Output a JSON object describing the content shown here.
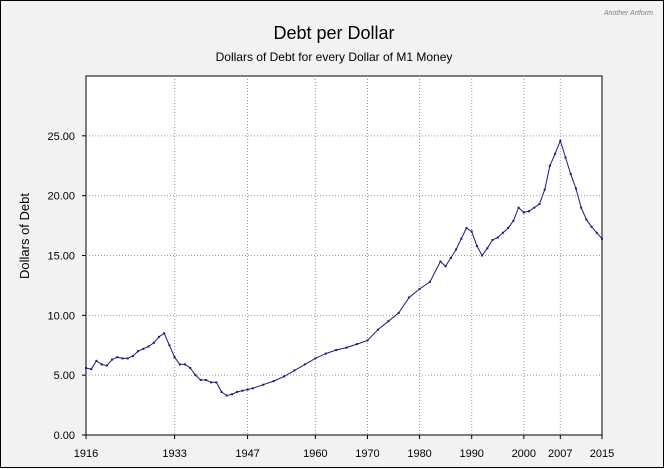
{
  "chart_data": {
    "type": "line",
    "title": "Debt per Dollar",
    "subtitle": "Dollars of Debt for every Dollar of M1 Money",
    "xlabel": "",
    "ylabel": "Dollars of Debt",
    "credit": "Another Artform",
    "xlim": [
      1916,
      2015
    ],
    "ylim": [
      0,
      30
    ],
    "grid": true,
    "line_color": "#1a1a7a",
    "x_ticks": [
      1916,
      1933,
      1947,
      1960,
      1970,
      1980,
      1990,
      2000,
      2007,
      2015
    ],
    "y_ticks": [
      0,
      5,
      10,
      15,
      20,
      25
    ],
    "y_tick_labels": [
      "0.00",
      "5.00",
      "10.00",
      "15.00",
      "20.00",
      "25.00"
    ],
    "series": [
      {
        "x": [
          1916,
          1917,
          1918,
          1919,
          1920,
          1921,
          1922,
          1923,
          1924,
          1925,
          1926,
          1927,
          1928,
          1929,
          1930,
          1931,
          1932,
          1933,
          1934,
          1935,
          1936,
          1937,
          1938,
          1939,
          1940,
          1941,
          1942,
          1943,
          1944,
          1945,
          1946,
          1947,
          1948,
          1950,
          1952,
          1954,
          1956,
          1958,
          1960,
          1962,
          1964,
          1966,
          1968,
          1970,
          1972,
          1974,
          1976,
          1978,
          1980,
          1982,
          1984,
          1985,
          1986,
          1987,
          1988,
          1989,
          1990,
          1991,
          1992,
          1993,
          1994,
          1995,
          1996,
          1997,
          1998,
          1999,
          2000,
          2001,
          2002,
          2003,
          2004,
          2005,
          2006,
          2007,
          2008,
          2009,
          2010,
          2011,
          2012,
          2013,
          2014,
          2015
        ],
        "values": [
          5.6,
          5.5,
          6.2,
          5.9,
          5.8,
          6.3,
          6.5,
          6.4,
          6.4,
          6.6,
          7.0,
          7.2,
          7.4,
          7.7,
          8.2,
          8.5,
          7.5,
          6.5,
          5.9,
          5.9,
          5.6,
          5.0,
          4.6,
          4.6,
          4.4,
          4.4,
          3.6,
          3.3,
          3.4,
          3.6,
          3.7,
          3.8,
          3.9,
          4.2,
          4.5,
          4.9,
          5.4,
          5.9,
          6.4,
          6.8,
          7.1,
          7.3,
          7.6,
          7.9,
          8.8,
          9.5,
          10.2,
          11.5,
          12.2,
          12.8,
          14.5,
          14.1,
          14.8,
          15.5,
          16.4,
          17.3,
          17.0,
          15.8,
          15.0,
          15.6,
          16.3,
          16.5,
          16.9,
          17.3,
          17.9,
          19.0,
          18.6,
          18.7,
          19.0,
          19.3,
          20.5,
          22.5,
          23.5,
          24.6,
          23.2,
          21.8,
          20.6,
          19.0,
          18.0,
          17.4,
          16.9,
          16.4
        ]
      }
    ]
  }
}
